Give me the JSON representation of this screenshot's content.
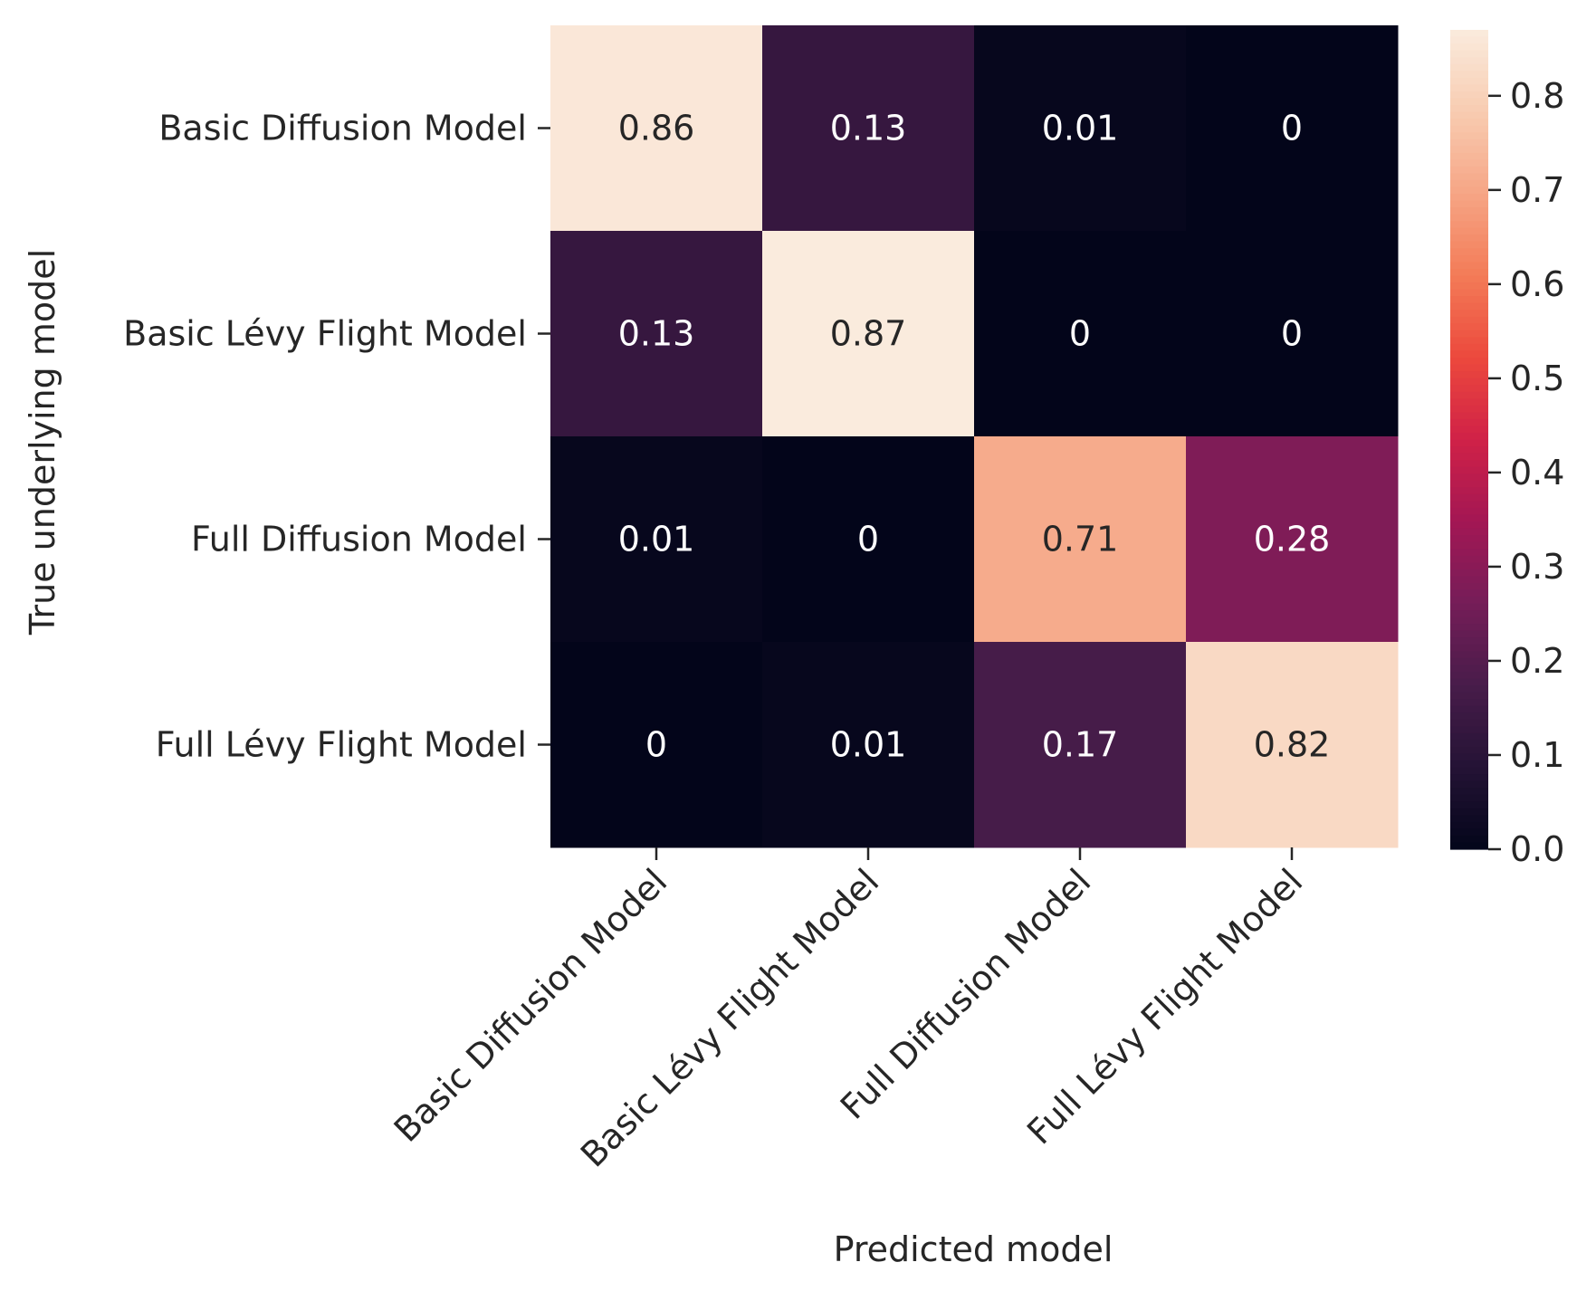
{
  "chart_data": {
    "type": "heatmap",
    "rows": [
      "Basic Diffusion Model",
      "Basic Lévy Flight Model",
      "Full Diffusion Model",
      "Full Lévy Flight Model"
    ],
    "columns": [
      "Basic Diffusion Model",
      "Basic Lévy Flight Model",
      "Full Diffusion Model",
      "Full Lévy Flight Model"
    ],
    "values": [
      [
        0.86,
        0.13,
        0.01,
        0
      ],
      [
        0.13,
        0.87,
        0,
        0
      ],
      [
        0.01,
        0,
        0.71,
        0.28
      ],
      [
        0,
        0.01,
        0.17,
        0.82
      ]
    ],
    "labels": [
      [
        "0.86",
        "0.13",
        "0.01",
        "0"
      ],
      [
        "0.13",
        "0.87",
        "0",
        "0"
      ],
      [
        "0.01",
        "0",
        "0.71",
        "0.28"
      ],
      [
        "0",
        "0.01",
        "0.17",
        "0.82"
      ]
    ],
    "xlabel": "Predicted model",
    "ylabel": "True underlying model",
    "colorbar": {
      "range": [
        0,
        0.87
      ],
      "ticks": [
        0.0,
        0.1,
        0.2,
        0.3,
        0.4,
        0.5,
        0.6,
        0.7,
        0.8
      ],
      "tick_labels": [
        "0.0",
        "0.1",
        "0.2",
        "0.3",
        "0.4",
        "0.5",
        "0.6",
        "0.7",
        "0.8"
      ]
    },
    "colormap": "rocket",
    "grid": false
  }
}
